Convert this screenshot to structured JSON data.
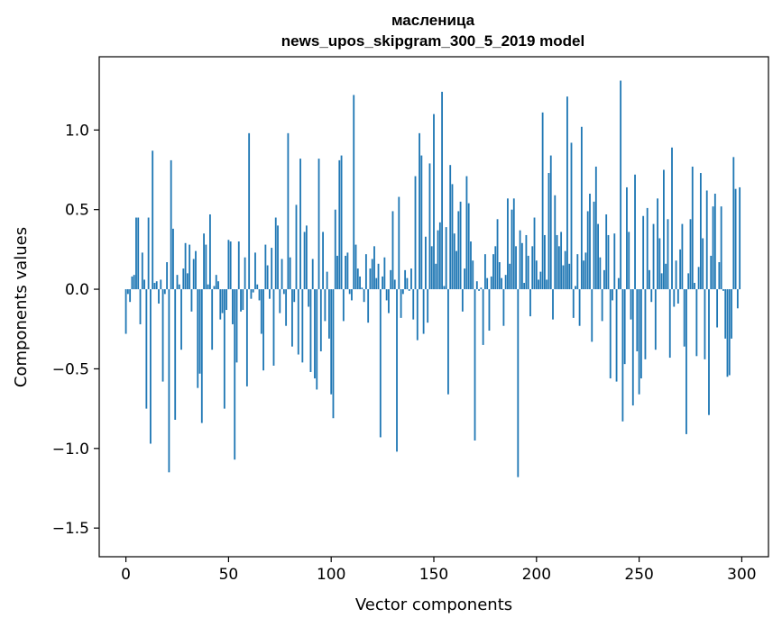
{
  "chart_data": {
    "type": "bar",
    "title": "масленица",
    "subtitle": "news_upos_skipgram_300_5_2019 model",
    "xlabel": "Vector components",
    "ylabel": "Components values",
    "xlim": [
      -13,
      313
    ],
    "ylim": [
      -1.68,
      1.46
    ],
    "xticks": [
      0,
      50,
      100,
      150,
      200,
      250,
      300
    ],
    "yticks": [
      -1.5,
      -1.0,
      -0.5,
      0.0,
      0.5,
      1.0
    ],
    "xtick_labels": [
      "0",
      "50",
      "100",
      "150",
      "200",
      "250",
      "300"
    ],
    "ytick_labels": [
      "−1.5",
      "−1.0",
      "−0.5",
      "0.0",
      "0.5",
      "1.0"
    ],
    "bar_color": "#1f77b4",
    "grid": false,
    "x": "0..299",
    "values": [
      -0.28,
      -0.03,
      -0.08,
      0.08,
      0.09,
      0.45,
      0.45,
      -0.22,
      0.23,
      0.06,
      -0.75,
      0.45,
      -0.97,
      0.87,
      0.04,
      0.05,
      -0.09,
      0.06,
      -0.58,
      -0.03,
      0.17,
      -1.15,
      0.81,
      0.38,
      -0.82,
      0.09,
      0.03,
      -0.38,
      0.13,
      0.29,
      0.1,
      0.28,
      -0.14,
      0.19,
      0.24,
      -0.62,
      -0.53,
      -0.84,
      0.35,
      0.28,
      0.03,
      0.47,
      -0.38,
      0.02,
      0.09,
      0.05,
      -0.19,
      -0.15,
      -0.75,
      -0.13,
      0.31,
      0.3,
      -0.22,
      -1.07,
      -0.46,
      0.3,
      -0.14,
      -0.13,
      0.2,
      -0.61,
      0.98,
      -0.06,
      -0.02,
      0.23,
      0.03,
      -0.07,
      -0.28,
      -0.51,
      0.28,
      0.15,
      -0.06,
      0.26,
      -0.48,
      0.45,
      0.4,
      -0.15,
      0.19,
      -0.03,
      -0.23,
      0.98,
      0.2,
      -0.36,
      -0.08,
      0.53,
      -0.41,
      0.82,
      -0.46,
      0.36,
      0.4,
      -0.11,
      -0.52,
      0.19,
      -0.56,
      -0.63,
      0.82,
      -0.39,
      0.36,
      -0.2,
      0.11,
      -0.31,
      -0.66,
      -0.81,
      0.5,
      0.21,
      0.81,
      0.84,
      -0.2,
      0.21,
      0.23,
      -0.03,
      -0.07,
      1.22,
      0.28,
      0.13,
      0.08,
      0.01,
      -0.08,
      0.22,
      -0.21,
      0.13,
      0.19,
      0.27,
      0.07,
      0.16,
      -0.93,
      0.08,
      0.2,
      -0.07,
      -0.15,
      0.12,
      0.49,
      0.06,
      -1.02,
      0.58,
      -0.18,
      -0.03,
      0.12,
      0.07,
      -0.01,
      0.13,
      -0.19,
      0.71,
      -0.32,
      0.98,
      0.84,
      -0.28,
      0.33,
      -0.21,
      0.79,
      0.27,
      1.1,
      0.16,
      0.37,
      0.42,
      1.24,
      0.02,
      0.39,
      -0.66,
      0.78,
      0.66,
      0.35,
      0.24,
      0.49,
      0.55,
      -0.14,
      0.13,
      0.71,
      0.54,
      0.3,
      0.18,
      -0.95,
      0.05,
      -0.01,
      0.01,
      -0.35,
      0.22,
      0.07,
      -0.26,
      0.08,
      0.22,
      0.27,
      0.44,
      0.17,
      0.07,
      -0.23,
      0.09,
      0.57,
      0.16,
      0.5,
      0.57,
      0.27,
      -1.18,
      0.37,
      0.29,
      0.04,
      0.34,
      0.21,
      -0.17,
      0.27,
      0.45,
      0.18,
      0.06,
      0.11,
      1.11,
      0.34,
      0.06,
      0.73,
      0.84,
      -0.19,
      0.59,
      0.34,
      0.27,
      0.36,
      0.15,
      0.24,
      1.21,
      0.16,
      0.92,
      -0.18,
      0.02,
      0.22,
      -0.23,
      1.02,
      0.18,
      0.23,
      0.49,
      0.6,
      -0.33,
      0.55,
      0.77,
      0.41,
      0.2,
      -0.2,
      0.12,
      0.47,
      0.34,
      -0.56,
      -0.07,
      0.35,
      -0.58,
      0.07,
      1.31,
      -0.83,
      -0.47,
      0.64,
      0.36,
      -0.19,
      -0.73,
      0.72,
      -0.39,
      -0.66,
      -0.56,
      0.46,
      -0.44,
      0.51,
      0.12,
      -0.08,
      0.41,
      -0.38,
      0.57,
      0.32,
      0.1,
      0.75,
      0.16,
      0.44,
      -0.43,
      0.89,
      -0.11,
      0.18,
      -0.09,
      0.25,
      0.41,
      -0.36,
      -0.91,
      0.1,
      0.44,
      0.77,
      0.04,
      -0.42,
      0.14,
      0.73,
      0.32,
      -0.44,
      0.62,
      -0.79,
      0.21,
      0.52,
      0.6,
      -0.24,
      0.17,
      0.52,
      -0.01,
      -0.31,
      -0.55,
      -0.54,
      -0.31,
      0.83,
      0.63,
      -0.12,
      0.64
    ]
  }
}
